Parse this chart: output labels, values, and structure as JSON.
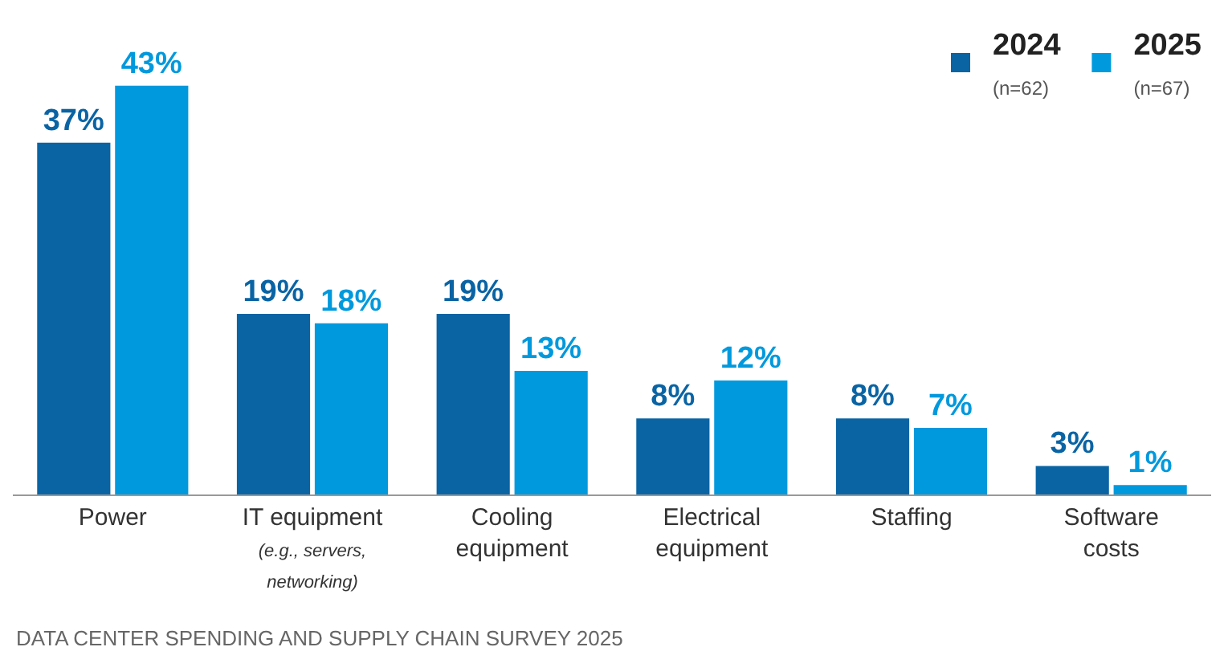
{
  "chart_data": {
    "type": "bar",
    "categories": [
      "Power",
      "IT equipment\n(e.g., servers,\nnetworking)",
      "Cooling\nequipment",
      "Electrical\nequipment",
      "Staffing",
      "Software\ncosts"
    ],
    "series": [
      {
        "name": "2024\n(n=62)",
        "color": "#0a64a4",
        "values": [
          37,
          19,
          19,
          8,
          8,
          3
        ],
        "value_labels": [
          "37%",
          "19%",
          "19%",
          "8%",
          "8%",
          "3%"
        ]
      },
      {
        "name": "2025\n(n=67)",
        "color": "#0099dd",
        "values": [
          43,
          18,
          13,
          12,
          7,
          1
        ],
        "value_labels": [
          "43%",
          "18%",
          "13%",
          "12%",
          "7%",
          "1%"
        ]
      }
    ],
    "legend": "top right",
    "annotations": [
      "DATA CENTER SPENDING AND SUPPLY CHAIN SURVEY 2025"
    ]
  }
}
